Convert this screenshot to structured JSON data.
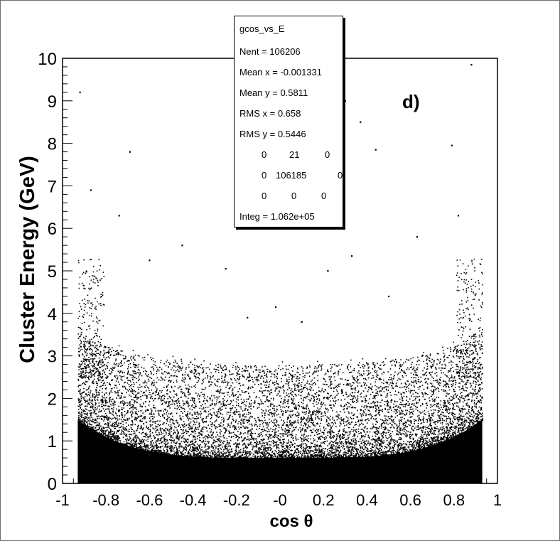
{
  "chart_data": {
    "type": "scatter",
    "histogram_name": "gcos_vs_E",
    "panel_label": "d)",
    "xlabel": "cos θ",
    "ylabel": "Cluster Energy (GeV)",
    "xlim": [
      -1,
      1
    ],
    "ylim": [
      0,
      10
    ],
    "x_tick_labels": [
      "-1",
      "-0.8",
      "-0.6",
      "-0.4",
      "-0.2",
      "-0",
      "0.2",
      "0.4",
      "0.6",
      "0.8",
      "1"
    ],
    "x_tick_values": [
      -1,
      -0.8,
      -0.6,
      -0.4,
      -0.2,
      0,
      0.2,
      0.4,
      0.6,
      0.8,
      1
    ],
    "y_tick_labels": [
      "0",
      "1",
      "2",
      "3",
      "4",
      "5",
      "6",
      "7",
      "8",
      "9",
      "10"
    ],
    "y_tick_values": [
      0,
      1,
      2,
      3,
      4,
      5,
      6,
      7,
      8,
      9,
      10
    ],
    "data_x_range": [
      -0.93,
      0.93
    ],
    "density_description_values": {
      "dense_band_top_center": 0.6,
      "dense_band_top_edges": 1.5,
      "sparse_cutoff_center": 2.6,
      "sparse_cutoff_edges": 3.3
    },
    "sparse_points": [
      {
        "x": -0.92,
        "y": 9.2
      },
      {
        "x": -0.87,
        "y": 6.9
      },
      {
        "x": -0.74,
        "y": 6.3
      },
      {
        "x": -0.69,
        "y": 7.8
      },
      {
        "x": -0.45,
        "y": 5.6
      },
      {
        "x": -0.25,
        "y": 5.05
      },
      {
        "x": 0.22,
        "y": 5.0
      },
      {
        "x": 0.3,
        "y": 9.0
      },
      {
        "x": 0.33,
        "y": 5.35
      },
      {
        "x": 0.37,
        "y": 8.5
      },
      {
        "x": 0.44,
        "y": 7.85
      },
      {
        "x": 0.63,
        "y": 5.8
      },
      {
        "x": 0.79,
        "y": 7.95
      },
      {
        "x": 0.82,
        "y": 6.3
      },
      {
        "x": 0.88,
        "y": 9.85
      },
      {
        "x": -0.02,
        "y": 4.15
      },
      {
        "x": 0.1,
        "y": 3.8
      },
      {
        "x": -0.15,
        "y": 3.9
      },
      {
        "x": 0.5,
        "y": 4.4
      },
      {
        "x": -0.6,
        "y": 5.25
      }
    ],
    "stats": {
      "entries": [
        {
          "label": "Nent",
          "value": "106206"
        },
        {
          "label": "Mean x",
          "value": "-0.001331"
        },
        {
          "label": "Mean y",
          "value": "0.5811"
        },
        {
          "label": "RMS x",
          "value": "0.658"
        },
        {
          "label": "RMS y",
          "value": "0.5446"
        }
      ],
      "grid": [
        [
          "0",
          "21",
          "0"
        ],
        [
          "0",
          "106185",
          "0"
        ],
        [
          "0",
          "0",
          "0"
        ]
      ],
      "integral_label": "Integ",
      "integral_value": "1.062e+05"
    }
  },
  "stats_text": {
    "title": "gcos_vs_E",
    "line_nent": "Nent = 106206",
    "line_mean_x": "Mean x = -0.001331",
    "line_mean_y": "Mean y = 0.5811",
    "line_rms_x": "RMS x  =  0.658",
    "line_rms_y": "RMS y  = 0.5446",
    "grid_r1c1": "0",
    "grid_r1c2": "21",
    "grid_r1c3": "0",
    "grid_r2c1": "0",
    "grid_r2c2": "106185",
    "grid_r2c3": "0",
    "grid_r3c1": "0",
    "grid_r3c2": "0",
    "grid_r3c3": "0",
    "line_integ": "Integ  = 1.062e+05"
  },
  "colors": {
    "points": "#000000",
    "frame": "#6f6f6f",
    "background": "#ffffff"
  }
}
